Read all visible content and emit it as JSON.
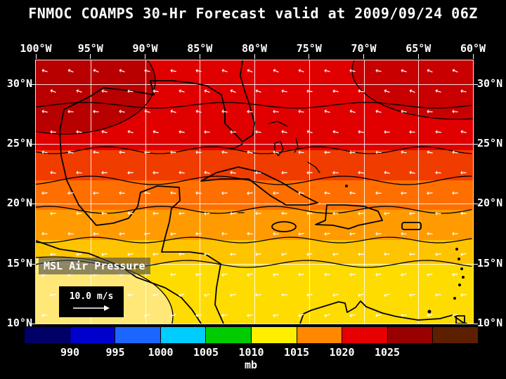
{
  "title": "FNMOC COAMPS 30-Hr Forecast valid at 2009/09/24 06Z",
  "map": {
    "lon_labels": [
      "100°W",
      "95°W",
      "90°W",
      "85°W",
      "80°W",
      "75°W",
      "70°W",
      "65°W",
      "60°W"
    ],
    "lat_labels_left": [
      "30°N",
      "25°N",
      "20°N",
      "15°N",
      "10°N"
    ],
    "lat_labels_right": [
      "30°N",
      "25°N",
      "20°N",
      "15°N",
      "10°N"
    ],
    "overlay_label": "MSL Air Pressure",
    "wind_scale_label": "10.0 m/s"
  },
  "colorbar": {
    "unit": "mb",
    "tick_labels": [
      "990",
      "995",
      "1000",
      "1005",
      "1010",
      "1015",
      "1020",
      "1025"
    ],
    "colors": [
      "#000066",
      "#0000cc",
      "#1a66ff",
      "#00ccff",
      "#00cc00",
      "#ffee00",
      "#ff8800",
      "#e60000",
      "#990000",
      "#5c1f00"
    ]
  },
  "chart_data": {
    "type": "heatmap",
    "title": "FNMOC COAMPS 30-Hr Forecast valid at 2009/09/24 06Z",
    "field": "MSL Air Pressure",
    "unit": "mb",
    "x_axis": {
      "label": "longitude",
      "ticks": [
        "100°W",
        "95°W",
        "90°W",
        "85°W",
        "80°W",
        "75°W",
        "70°W",
        "65°W",
        "60°W"
      ]
    },
    "y_axis": {
      "label": "latitude",
      "ticks": [
        "30°N",
        "25°N",
        "20°N",
        "15°N",
        "10°N"
      ]
    },
    "colorbar_ticks_mb": [
      990,
      995,
      1000,
      1005,
      1010,
      1015,
      1020,
      1025
    ],
    "wind_vector_reference_m_per_s": 10.0,
    "pattern": "pressure decreases from ~1018-1022 mb (red) in the north over the Gulf of Mexico and western Atlantic to ~1008-1012 mb (yellow) in the south over the Caribbean; white wind vectors show easterly trade-wind flow"
  }
}
